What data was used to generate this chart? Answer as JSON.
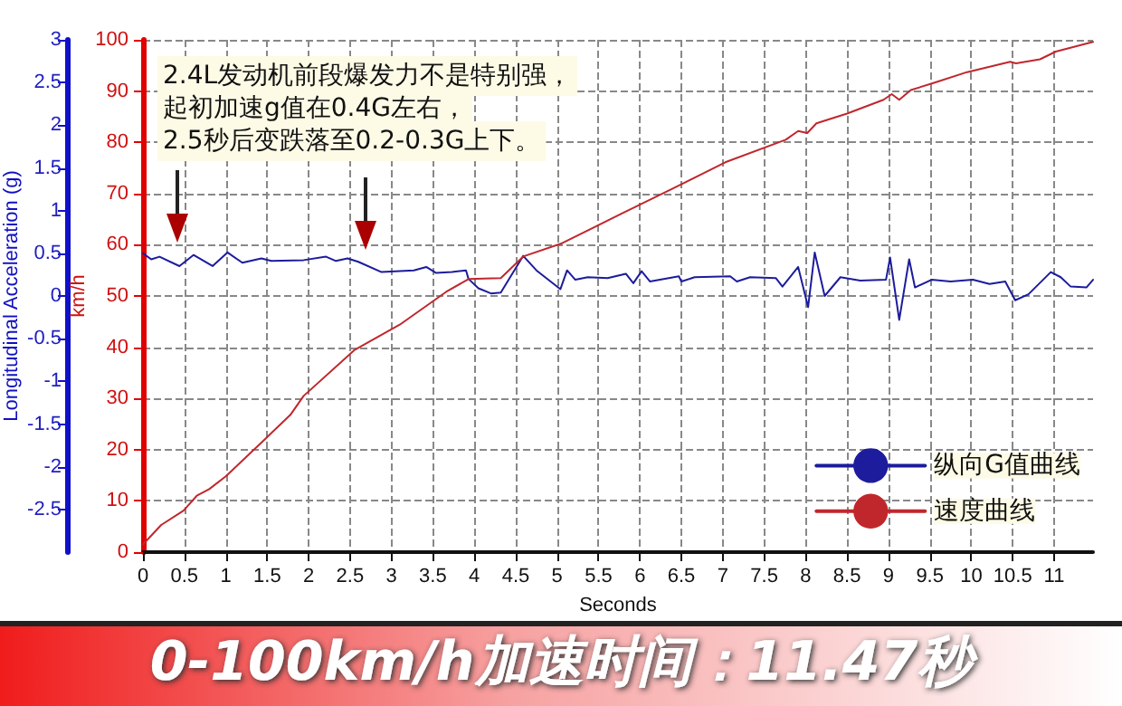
{
  "chart_data": {
    "type": "line",
    "title": "0-100km/h加速时间：11.47秒",
    "xlabel": "Seconds",
    "ylabel": "Longitudinal Acceleration (g)",
    "y2label": "km/h",
    "annotations": [
      "2.4L发动机前段爆发力不是特别强，",
      "起初加速g值在0.4G左右，",
      "2.5秒后变跌落至0.2-0.3G上下。"
    ],
    "xlim": [
      0,
      11.47
    ],
    "xticks": [
      0,
      0.5,
      1,
      1.5,
      2,
      2.5,
      3,
      3.5,
      4,
      4.5,
      5,
      5.5,
      6,
      6.5,
      7,
      7.5,
      8,
      8.5,
      9,
      9.5,
      10,
      10.5,
      11
    ],
    "ylim": [
      -3,
      3
    ],
    "yticks": [
      -2.5,
      -2,
      -1.5,
      -1,
      -0.5,
      0,
      0.5,
      1,
      1.5,
      2,
      2.5,
      3
    ],
    "y2lim": [
      0,
      100
    ],
    "y2ticks": [
      0,
      10,
      20,
      30,
      40,
      50,
      60,
      70,
      80,
      90,
      100
    ],
    "grid": true,
    "legend": "bottom right",
    "marker": "none",
    "line_style": "solid",
    "series": [
      {
        "name": "纵向G值曲线",
        "color": "#1c1c9c",
        "axis": "y",
        "x": [
          0,
          0.1,
          0.2,
          0.44,
          0.61,
          0.84,
          1.02,
          1.2,
          1.43,
          1.55,
          1.94,
          2.21,
          2.33,
          2.47,
          2.6,
          2.88,
          3.27,
          3.42,
          3.54,
          3.73,
          3.9,
          3.93,
          4.05,
          4.2,
          4.32,
          4.59,
          4.75,
          5.04,
          5.12,
          5.22,
          5.37,
          5.61,
          5.83,
          5.92,
          6.02,
          6.12,
          6.47,
          6.5,
          6.66,
          7.09,
          7.17,
          7.33,
          7.64,
          7.72,
          7.91,
          8.03,
          8.11,
          8.23,
          8.42,
          8.66,
          8.97,
          9.02,
          9.13,
          9.25,
          9.32,
          9.52,
          9.75,
          10.02,
          10.22,
          10.41,
          10.53,
          10.69,
          10.96,
          11.08,
          11.2,
          11.39,
          11.47
        ],
        "values": [
          0.5,
          0.43,
          0.46,
          0.35,
          0.48,
          0.35,
          0.51,
          0.39,
          0.44,
          0.41,
          0.42,
          0.46,
          0.41,
          0.44,
          0.4,
          0.28,
          0.3,
          0.34,
          0.27,
          0.28,
          0.3,
          0.2,
          0.09,
          0.03,
          0.04,
          0.47,
          0.3,
          0.08,
          0.3,
          0.19,
          0.22,
          0.21,
          0.26,
          0.15,
          0.29,
          0.17,
          0.23,
          0.17,
          0.22,
          0.23,
          0.17,
          0.22,
          0.21,
          0.11,
          0.34,
          -0.13,
          0.51,
          0,
          0.22,
          0.18,
          0.19,
          0.45,
          -0.28,
          0.43,
          0.1,
          0.19,
          0.17,
          0.19,
          0.14,
          0.17,
          -0.05,
          0.02,
          0.28,
          0.22,
          0.11,
          0.1,
          0.19
        ]
      },
      {
        "name": "速度曲线",
        "color": "#c0272d",
        "axis": "y2",
        "x": [
          0,
          0.22,
          0.49,
          0.65,
          0.8,
          1,
          1.47,
          1.78,
          1.94,
          2.55,
          3.1,
          3.66,
          3.93,
          4.32,
          4.59,
          5.06,
          5.77,
          6.4,
          7.03,
          7.76,
          7.91,
          8.02,
          8.13,
          8.5,
          8.94,
          9.04,
          9.13,
          9.27,
          9.55,
          9.95,
          10.47,
          10.54,
          10.83,
          11.02,
          11.47
        ],
        "values": [
          1.5,
          5.3,
          8.1,
          11,
          12.3,
          14.8,
          22,
          26.8,
          30.5,
          39.4,
          44.4,
          50.8,
          53.3,
          53.5,
          57.7,
          60.3,
          66,
          71,
          76.1,
          80.5,
          82.2,
          81.8,
          83.7,
          85.6,
          88.3,
          89.4,
          88.3,
          90.2,
          91.6,
          93.7,
          95.7,
          95.4,
          96.2,
          97.7,
          99.6
        ]
      }
    ]
  }
}
